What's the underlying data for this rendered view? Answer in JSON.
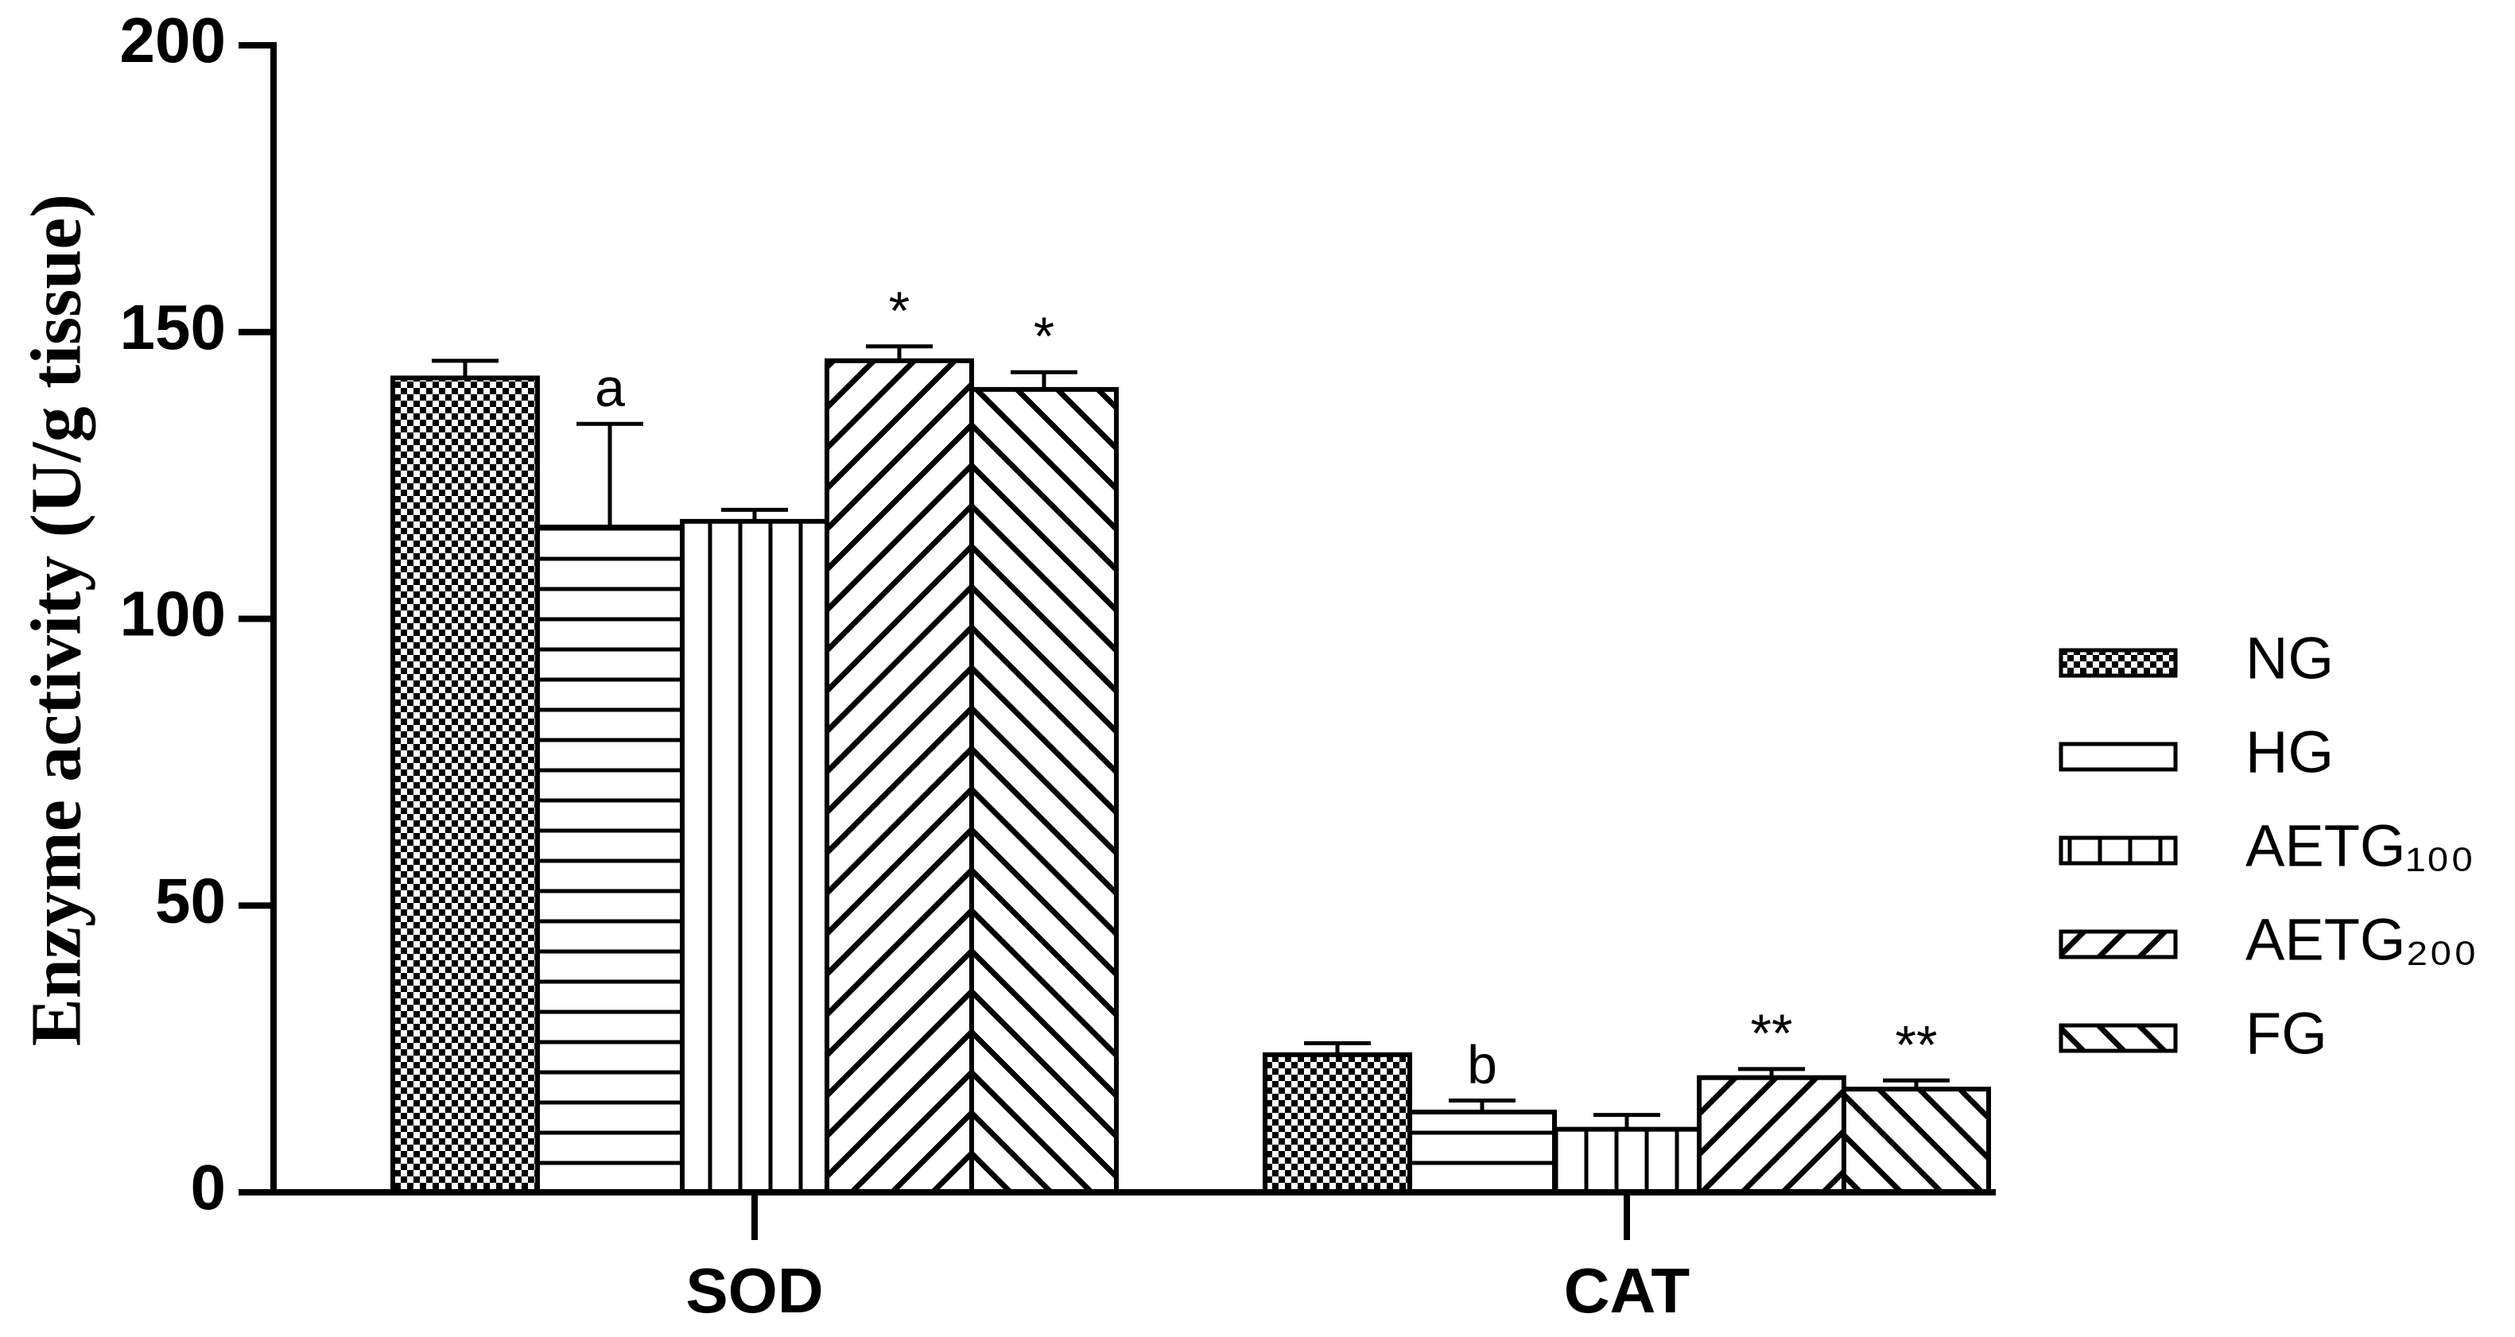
{
  "chart_data": {
    "type": "bar",
    "ylabel": "Enzyme activity (U/g tissue)",
    "categories": [
      "SOD",
      "CAT"
    ],
    "ylim": [
      0,
      200
    ],
    "yticks": [
      0,
      50,
      100,
      150,
      200
    ],
    "series": [
      {
        "name": "NG",
        "color": "#000000",
        "pattern": "checker",
        "values": [
          142,
          24
        ],
        "errors": [
          3,
          2
        ],
        "annotations": [
          null,
          null
        ]
      },
      {
        "name": "HG",
        "color": "#000000",
        "pattern": "horizontal",
        "values": [
          116,
          14
        ],
        "errors": [
          18,
          2
        ],
        "annotations": [
          "a",
          "b"
        ]
      },
      {
        "name": "AETG₁₀₀",
        "color": "#000000",
        "pattern": "vertical",
        "values": [
          117,
          11
        ],
        "errors": [
          2,
          2.5
        ],
        "annotations": [
          null,
          null
        ]
      },
      {
        "name": "AETG₂₀₀",
        "color": "#000000",
        "pattern": "forward-diagonal",
        "values": [
          145,
          20
        ],
        "errors": [
          2.5,
          1.5
        ],
        "annotations": [
          "*",
          "**"
        ]
      },
      {
        "name": "FG",
        "color": "#000000",
        "pattern": "back-diagonal",
        "values": [
          140,
          18
        ],
        "errors": [
          3,
          1.5
        ],
        "annotations": [
          "*",
          "**"
        ]
      }
    ]
  }
}
